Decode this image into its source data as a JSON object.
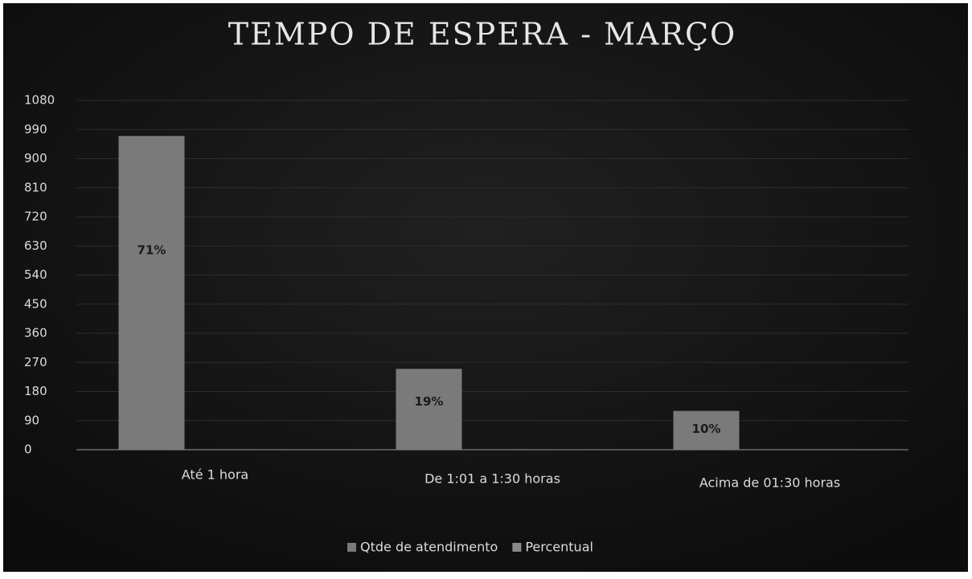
{
  "chart_data": {
    "type": "bar",
    "title": "TEMPO DE ESPERA - MARÇO",
    "categories": [
      "Até 1 hora",
      "De 1:01 a 1:30 horas",
      "Acima de 01:30 horas"
    ],
    "series": [
      {
        "name": "Qtde de atendimento",
        "color": "#7a7a7a",
        "values": [
          970,
          250,
          120
        ]
      },
      {
        "name": "Percentual",
        "color": "#8a8a8a",
        "values": [
          0.71,
          0.19,
          0.1
        ],
        "value_labels": [
          "71%",
          "19%",
          "10%"
        ]
      }
    ],
    "ylim": [
      0,
      1080
    ],
    "yticks": [
      0,
      90,
      180,
      270,
      360,
      450,
      540,
      630,
      720,
      810,
      900,
      990,
      1080
    ],
    "grid": true,
    "legend": "bottom"
  }
}
